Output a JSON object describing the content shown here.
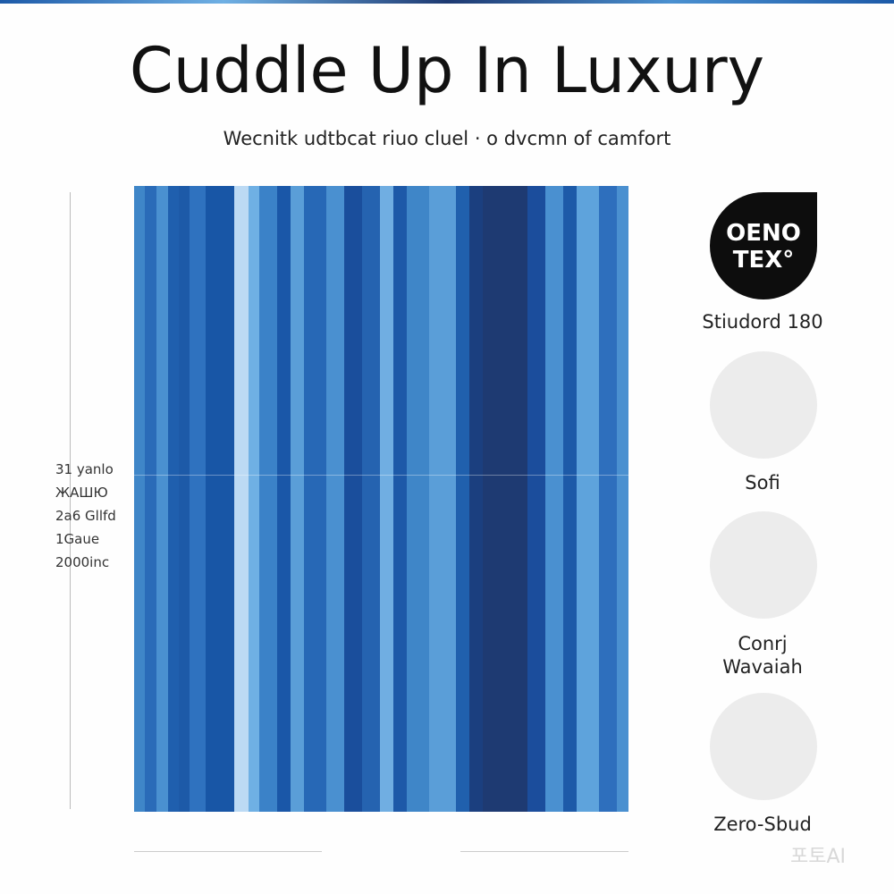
{
  "header": {
    "title": "Cuddle Up In Luxury",
    "subtitle": "Wecnitk udtbcat riuo cluel · o dvcmn of camfort"
  },
  "size_labels": [
    "31 yanlo",
    "ЖАШЮ",
    "2a6 Gllfd",
    "1Gaue",
    "2000inc"
  ],
  "badge": {
    "line1": "OENO",
    "line2": "TEX°",
    "caption": "Stiudord 180"
  },
  "features": [
    "Sofi",
    "Conrj Wavaiah",
    "Zero-Sbud"
  ],
  "watermark": "포토AI"
}
